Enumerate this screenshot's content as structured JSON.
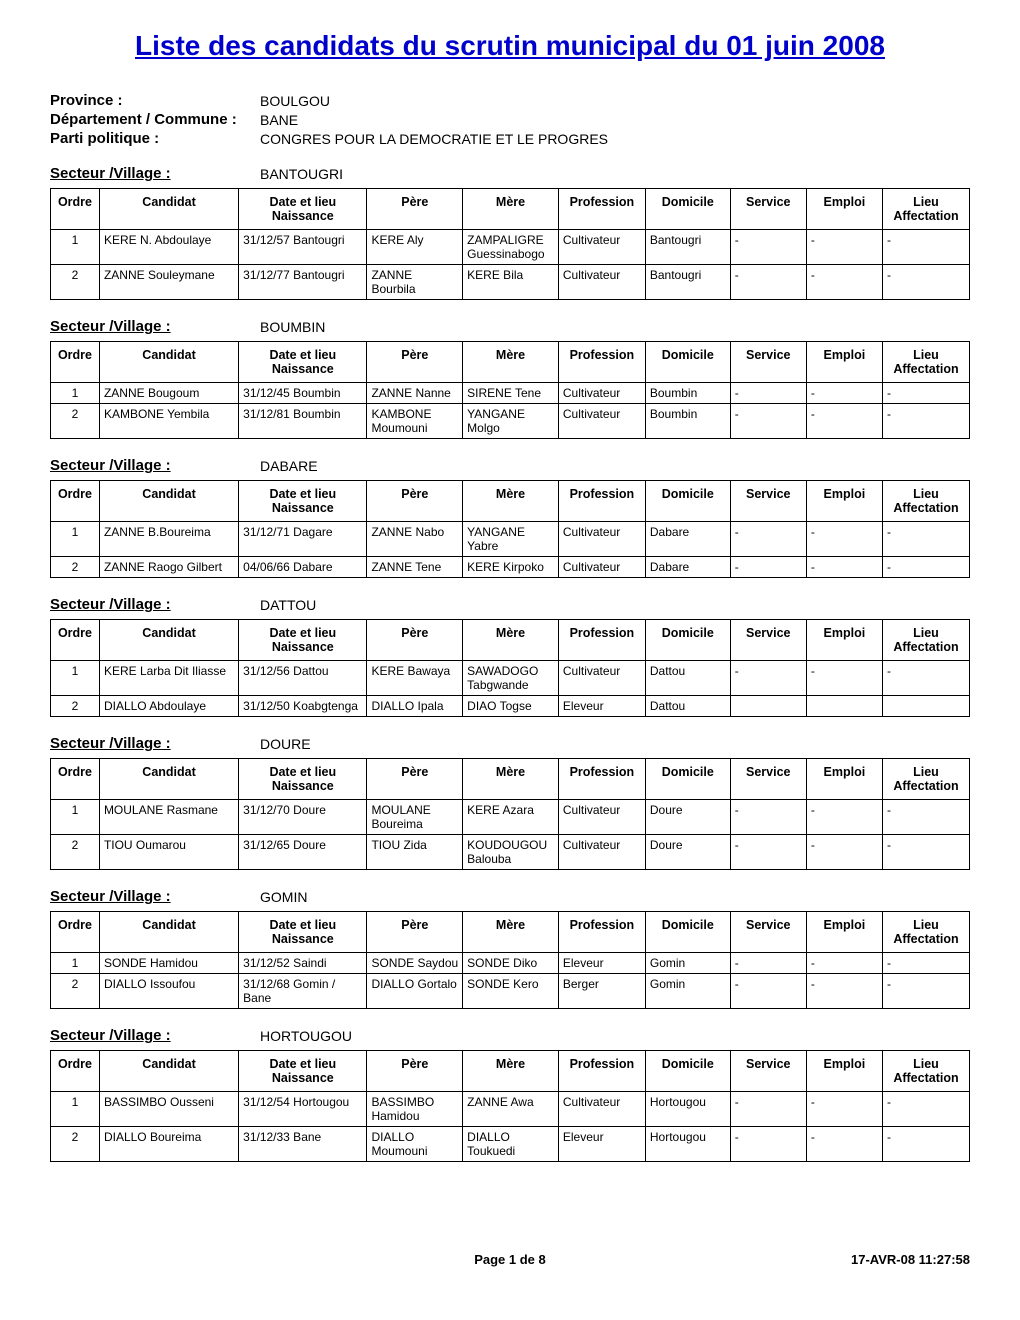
{
  "title": "Liste des candidats du scrutin municipal du 01 juin 2008",
  "meta": {
    "province_label": "Province :",
    "province_value": "BOULGOU",
    "commune_label": "Département / Commune :",
    "commune_value": "BANE",
    "parti_label": "Parti politique :",
    "parti_value": "CONGRES POUR LA DEMOCRATIE ET LE PROGRES"
  },
  "columns": [
    "Ordre",
    "Candidat",
    "Date et lieu Naissance",
    "Père",
    "Mère",
    "Profession",
    "Domicile",
    "Service",
    "Emploi",
    "Lieu Affectation"
  ],
  "sector_label": "Secteur /Village :",
  "sectors": [
    {
      "name": "BANTOUGRI",
      "rows": [
        [
          "1",
          "KERE N. Abdoulaye",
          "31/12/57 Bantougri",
          "KERE Aly",
          "ZAMPALIGRE Guessinabogo",
          "Cultivateur",
          "Bantougri",
          "-",
          "-",
          "-"
        ],
        [
          "2",
          "ZANNE Souleymane",
          "31/12/77 Bantougri",
          "ZANNE Bourbila",
          "KERE Bila",
          "Cultivateur",
          "Bantougri",
          "-",
          "-",
          "-"
        ]
      ]
    },
    {
      "name": "BOUMBIN",
      "rows": [
        [
          "1",
          "ZANNE Bougoum",
          "31/12/45 Boumbin",
          "ZANNE Nanne",
          "SIRENE Tene",
          "Cultivateur",
          "Boumbin",
          "-",
          "-",
          "-"
        ],
        [
          "2",
          "KAMBONE Yembila",
          "31/12/81 Boumbin",
          "KAMBONE Moumouni",
          "YANGANE Molgo",
          "Cultivateur",
          "Boumbin",
          "-",
          "-",
          "-"
        ]
      ]
    },
    {
      "name": "DABARE",
      "rows": [
        [
          "1",
          "ZANNE B.Boureima",
          "31/12/71 Dagare",
          "ZANNE Nabo",
          "YANGANE Yabre",
          "Cultivateur",
          "Dabare",
          "-",
          "-",
          "-"
        ],
        [
          "2",
          "ZANNE Raogo Gilbert",
          "04/06/66 Dabare",
          "ZANNE Tene",
          "KERE Kirpoko",
          "Cultivateur",
          "Dabare",
          "-",
          "-",
          "-"
        ]
      ]
    },
    {
      "name": "DATTOU",
      "rows": [
        [
          "1",
          "KERE Larba Dit Iliasse",
          "31/12/56 Dattou",
          "KERE Bawaya",
          "SAWADOGO Tabgwande",
          "Cultivateur",
          "Dattou",
          "-",
          "-",
          "-"
        ],
        [
          "2",
          "DIALLO Abdoulaye",
          "31/12/50 Koabgtenga",
          "DIALLO Ipala",
          "DIAO Togse",
          "Eleveur",
          "Dattou",
          "",
          "",
          ""
        ]
      ]
    },
    {
      "name": "DOURE",
      "rows": [
        [
          "1",
          "MOULANE Rasmane",
          "31/12/70 Doure",
          "MOULANE Boureima",
          "KERE Azara",
          "Cultivateur",
          "Doure",
          "-",
          "-",
          "-"
        ],
        [
          "2",
          "TIOU Oumarou",
          "31/12/65 Doure",
          "TIOU Zida",
          "KOUDOUGOU Balouba",
          "Cultivateur",
          "Doure",
          "-",
          "-",
          "-"
        ]
      ]
    },
    {
      "name": "GOMIN",
      "rows": [
        [
          "1",
          "SONDE Hamidou",
          "31/12/52 Saindi",
          "SONDE Saydou",
          "SONDE Diko",
          "Eleveur",
          "Gomin",
          "-",
          "-",
          "-"
        ],
        [
          "2",
          "DIALLO Issoufou",
          "31/12/68 Gomin / Bane",
          "DIALLO Gortalo",
          "SONDE Kero",
          "Berger",
          "Gomin",
          "-",
          "-",
          "-"
        ]
      ]
    },
    {
      "name": "HORTOUGOU",
      "rows": [
        [
          "1",
          "BASSIMBO Ousseni",
          "31/12/54 Hortougou",
          "BASSIMBO Hamidou",
          "ZANNE Awa",
          "Cultivateur",
          "Hortougou",
          "-",
          "-",
          "-"
        ],
        [
          "2",
          "DIALLO Boureima",
          "31/12/33 Bane",
          "DIALLO Moumouni",
          "DIALLO Toukuedi",
          "Eleveur",
          "Hortougou",
          "-",
          "-",
          "-"
        ]
      ]
    }
  ],
  "footer": {
    "page": "Page 1 de 8",
    "timestamp": "17-AVR-08 11:27:58"
  }
}
